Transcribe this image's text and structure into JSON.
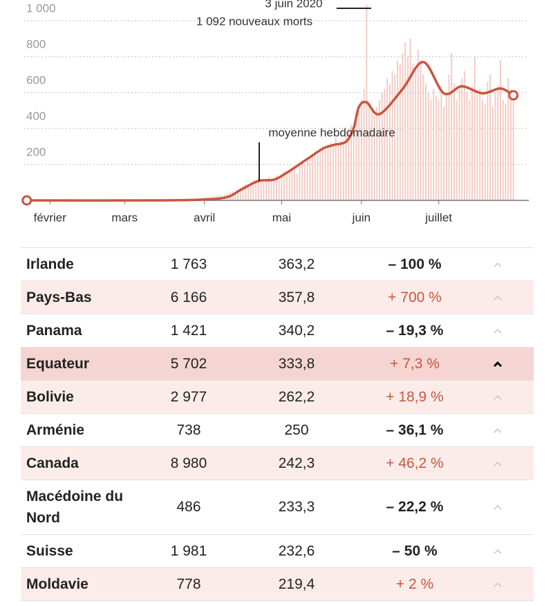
{
  "chart_data": {
    "type": "combo",
    "annotations": [
      "3 juin 2020",
      "1 092 nouveaux morts",
      "moyenne hebdomadaire"
    ],
    "xlim": [
      -10,
      186
    ],
    "xticks": [
      {
        "value": 0,
        "label": "février"
      },
      {
        "value": 29,
        "label": "mars"
      },
      {
        "value": 60,
        "label": "avril"
      },
      {
        "value": 90,
        "label": "mai"
      },
      {
        "value": 121,
        "label": "juin"
      },
      {
        "value": 151,
        "label": "juillet"
      }
    ],
    "ylim": [
      0,
      1100
    ],
    "yticks": [
      200,
      400,
      600,
      800,
      {
        "value": 1000,
        "label": "1 000"
      }
    ],
    "grid": true,
    "series": [
      {
        "type": "bar",
        "color": "#f3cdc7",
        "x": [
          40,
          41,
          42,
          43,
          44,
          45,
          46,
          47,
          48,
          49,
          50,
          51,
          52,
          53,
          54,
          55,
          56,
          57,
          58,
          59,
          60,
          61,
          62,
          63,
          64,
          65,
          66,
          67,
          68,
          69,
          70,
          71,
          72,
          73,
          74,
          75,
          76,
          77,
          78,
          79,
          80,
          81,
          82,
          83,
          84,
          85,
          86,
          87,
          88,
          89,
          90,
          91,
          92,
          93,
          94,
          95,
          96,
          97,
          98,
          99,
          100,
          101,
          102,
          103,
          104,
          105,
          106,
          107,
          108,
          109,
          110,
          111,
          112,
          113,
          114,
          115,
          116,
          117,
          118,
          119,
          120,
          121,
          122,
          123,
          124,
          125,
          126,
          127,
          128,
          129,
          130,
          131,
          132,
          133,
          134,
          135,
          136,
          137,
          138,
          139,
          140,
          141,
          142,
          143,
          144,
          145,
          146,
          147,
          148,
          149,
          150,
          151,
          152,
          153,
          154,
          155,
          156,
          157,
          158,
          159,
          160,
          161,
          162,
          163,
          164,
          165,
          166,
          167,
          168,
          169,
          170,
          171,
          172,
          173,
          174,
          175,
          176,
          177,
          178,
          179,
          180
        ],
        "values": [
          0,
          0,
          0,
          0,
          0,
          1,
          1,
          2,
          2,
          3,
          3,
          4,
          4,
          5,
          6,
          7,
          8,
          10,
          12,
          14,
          15,
          18,
          20,
          22,
          25,
          28,
          30,
          25,
          35,
          40,
          45,
          50,
          40,
          60,
          70,
          80,
          90,
          85,
          100,
          110,
          95,
          120,
          110,
          100,
          115,
          130,
          105,
          120,
          140,
          110,
          150,
          160,
          140,
          170,
          180,
          190,
          150,
          210,
          220,
          200,
          240,
          230,
          260,
          270,
          250,
          290,
          300,
          280,
          310,
          320,
          300,
          350,
          320,
          330,
          310,
          360,
          400,
          420,
          380,
          450,
          500,
          560,
          620,
          1092,
          540,
          500,
          470,
          520,
          560,
          600,
          620,
          680,
          650,
          720,
          700,
          780,
          760,
          820,
          880,
          800,
          900,
          760,
          720,
          840,
          780,
          700,
          650,
          600,
          560,
          620,
          580,
          560,
          640,
          520,
          600,
          700,
          820,
          650,
          560,
          620,
          680,
          720,
          600,
          560,
          640,
          800,
          590,
          620,
          560,
          540,
          660,
          700,
          520,
          600,
          640,
          780,
          560,
          540,
          680,
          620,
          580
        ]
      },
      {
        "type": "line",
        "color": "#c9553f",
        "x": [
          -9,
          40,
          60,
          69,
          74,
          81,
          87,
          92,
          100,
          106,
          110,
          115,
          118,
          120,
          123,
          128,
          137,
          145,
          153,
          160,
          168,
          175,
          180
        ],
        "values": [
          0,
          0,
          5,
          19,
          58,
          108,
          115,
          154,
          231,
          288,
          308,
          327,
          404,
          520,
          546,
          480,
          620,
          770,
          596,
          635,
          596,
          623,
          585
        ]
      }
    ]
  },
  "table": {
    "selected_row": 3,
    "rows": [
      [
        "Irlande",
        "1 763",
        "363,2",
        "– 100 %"
      ],
      [
        "Pays-Bas",
        "6 166",
        "357,8",
        "+ 700 %"
      ],
      [
        "Panama",
        "1 421",
        "340,2",
        "– 19,3 %"
      ],
      [
        "Equateur",
        "5 702",
        "333,8",
        "+ 7,3 %"
      ],
      [
        "Bolivie",
        "2 977",
        "262,2",
        "+ 18,9 %"
      ],
      [
        "Arménie",
        "738",
        "250",
        "– 36,1 %"
      ],
      [
        "Canada",
        "8 980",
        "242,3",
        "+ 46,2 %"
      ],
      [
        "Macédoine du Nord",
        "486",
        "233,3",
        "– 22,2 %"
      ],
      [
        "Suisse",
        "1 981",
        "232,6",
        "– 50 %"
      ],
      [
        "Moldavie",
        "778",
        "219,4",
        "+ 2 %"
      ]
    ]
  }
}
